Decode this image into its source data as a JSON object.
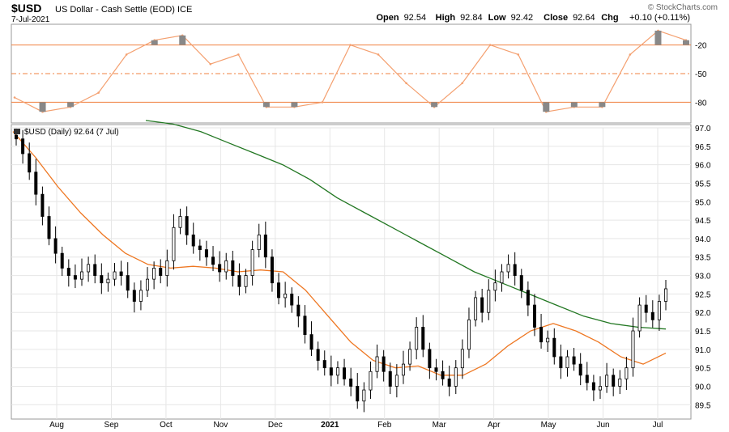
{
  "header": {
    "symbol": "$USD",
    "description": "US Dollar - Cash Settle (EOD) ICE",
    "date": "7-Jul-2021",
    "watermark": "© StockCharts.com",
    "ohlc": [
      {
        "label": "Open",
        "value": "92.54"
      },
      {
        "label": "High",
        "value": "92.84"
      },
      {
        "label": "Low",
        "value": "92.42"
      },
      {
        "label": "Close",
        "value": "92.64"
      },
      {
        "label": "Chg",
        "value": "+0.10 (+0.11%)"
      }
    ]
  },
  "main_legend": "$USD (Daily) 92.64 (7 Jul)",
  "colors": {
    "price": "#000000",
    "ma_fast": "#ee7722",
    "ma_slow": "#227722",
    "oscillator": "#f4a070",
    "osc_fill": "#888888",
    "ref_line": "#f08040",
    "grid": "#e6e6e6"
  },
  "chart_data": [
    {
      "type": "line",
      "panel": "oscillator",
      "ylim": [
        -100,
        0
      ],
      "yticks": [
        "-20",
        "-50",
        "-80"
      ],
      "reference_lines": [
        -20,
        -50,
        -80
      ],
      "x": [
        "2021-07-15",
        "2021-08-01",
        "2021-08-15",
        "2021-09-01",
        "2021-09-15",
        "2021-10-01",
        "2021-10-15",
        "2021-11-01",
        "2021-11-15",
        "2021-12-01",
        "2021-12-15",
        "2021-01-01",
        "2021-01-15",
        "2021-02-01",
        "2021-02-15",
        "2021-03-01",
        "2021-03-15",
        "2021-04-01",
        "2021-04-15",
        "2021-05-01",
        "2021-05-15",
        "2021-06-01",
        "2021-06-15",
        "2021-07-01",
        "2021-07-07"
      ],
      "values": [
        -75,
        -90,
        -85,
        -70,
        -30,
        -15,
        -10,
        -40,
        -30,
        -85,
        -85,
        -80,
        -20,
        -30,
        -60,
        -85,
        -60,
        -20,
        -30,
        -90,
        -85,
        -85,
        -30,
        -5,
        -15
      ]
    },
    {
      "type": "candlestick",
      "panel": "price",
      "title": "$USD (Daily) 92.64 (7 Jul)",
      "ylim": [
        89.2,
        97.0
      ],
      "yticks": [
        "97.0",
        "96.5",
        "96.0",
        "95.5",
        "95.0",
        "94.5",
        "94.0",
        "93.5",
        "93.0",
        "92.5",
        "92.0",
        "91.5",
        "91.0",
        "90.5",
        "90.0",
        "89.5"
      ],
      "xticks": [
        "Aug",
        "Sep",
        "Oct",
        "Nov",
        "Dec",
        "2021",
        "Feb",
        "Mar",
        "Apr",
        "May",
        "Jun",
        "Jul"
      ],
      "close": [
        96.7,
        96.3,
        95.8,
        95.2,
        94.6,
        94.0,
        93.6,
        93.2,
        93.0,
        92.9,
        93.1,
        93.3,
        93.0,
        92.8,
        92.9,
        93.1,
        93.0,
        92.6,
        92.3,
        92.6,
        92.9,
        93.2,
        93.0,
        93.4,
        94.3,
        94.6,
        94.1,
        93.8,
        93.7,
        93.5,
        93.3,
        93.1,
        93.4,
        93.0,
        92.7,
        93.0,
        93.7,
        94.1,
        93.5,
        92.8,
        92.4,
        92.5,
        92.2,
        91.9,
        91.4,
        91.0,
        90.7,
        90.5,
        90.3,
        90.5,
        90.2,
        90.0,
        89.6,
        89.9,
        90.4,
        90.8,
        90.4,
        90.0,
        90.3,
        90.6,
        91.0,
        91.6,
        91.0,
        90.5,
        90.4,
        90.2,
        90.0,
        90.5,
        91.0,
        91.8,
        92.4,
        92.0,
        92.6,
        92.8,
        93.1,
        93.3,
        93.0,
        92.6,
        92.2,
        91.6,
        91.2,
        91.3,
        90.8,
        90.5,
        90.8,
        90.6,
        90.3,
        90.1,
        89.9,
        90.0,
        90.3,
        90.0,
        90.2,
        90.5,
        91.5,
        92.2,
        92.0,
        91.8,
        92.3,
        92.64
      ],
      "series": [
        {
          "name": "ma_fast",
          "values": [
            96.9,
            96.2,
            95.4,
            94.7,
            94.1,
            93.6,
            93.3,
            93.2,
            93.25,
            93.2,
            93.1,
            93.15,
            93.1,
            92.6,
            91.9,
            91.2,
            90.7,
            90.5,
            90.55,
            90.3,
            90.3,
            90.6,
            91.1,
            91.5,
            91.7,
            91.5,
            91.2,
            90.8,
            90.6,
            90.9
          ]
        },
        {
          "name": "ma_slow",
          "values": [
            97.2,
            97.1,
            96.9,
            96.6,
            96.3,
            96.0,
            95.6,
            95.1,
            94.7,
            94.3,
            93.9,
            93.5,
            93.1,
            92.8,
            92.5,
            92.2,
            91.9,
            91.7,
            91.6,
            91.55
          ]
        }
      ]
    }
  ]
}
